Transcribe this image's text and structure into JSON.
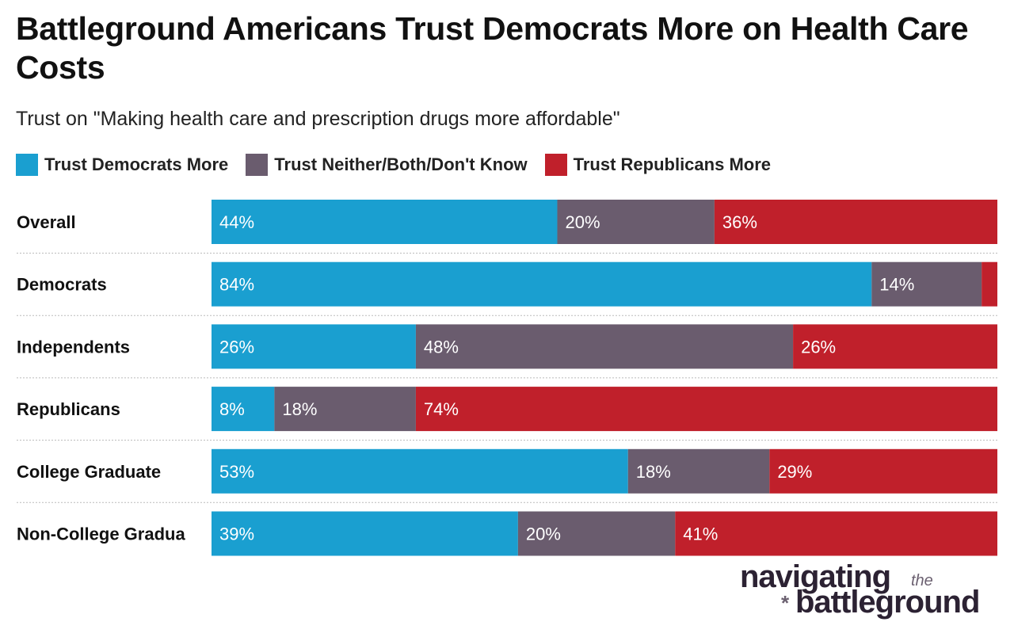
{
  "chart_data": {
    "type": "bar",
    "orientation": "horizontal-stacked-100",
    "title": "Battleground Americans Trust Democrats More on Health Care Costs",
    "subtitle": "Trust on \"Making health care and prescription drugs more affordable\"",
    "categories": [
      "Overall",
      "Democrats",
      "Independents",
      "Republicans",
      "College Graduate",
      "Non-College Gradua"
    ],
    "series": [
      {
        "name": "Trust Democrats More",
        "color": "#1a9fd0",
        "values": [
          44,
          84,
          26,
          8,
          53,
          39
        ]
      },
      {
        "name": "Trust Neither/Both/Don't Know",
        "color": "#6a5c6e",
        "values": [
          20,
          14,
          48,
          18,
          18,
          20
        ]
      },
      {
        "name": "Trust Republicans More",
        "color": "#c0202b",
        "values": [
          36,
          2,
          26,
          74,
          29,
          41
        ]
      }
    ],
    "labels_shown": [
      [
        true,
        true,
        true
      ],
      [
        true,
        true,
        false
      ],
      [
        true,
        true,
        true
      ],
      [
        true,
        true,
        true
      ],
      [
        true,
        true,
        true
      ],
      [
        true,
        true,
        true
      ]
    ],
    "xlim": [
      0,
      100
    ],
    "legend": "top-left"
  },
  "logo": {
    "line1": "navigating",
    "the": "the",
    "line2": "battleground",
    "star": "*"
  }
}
